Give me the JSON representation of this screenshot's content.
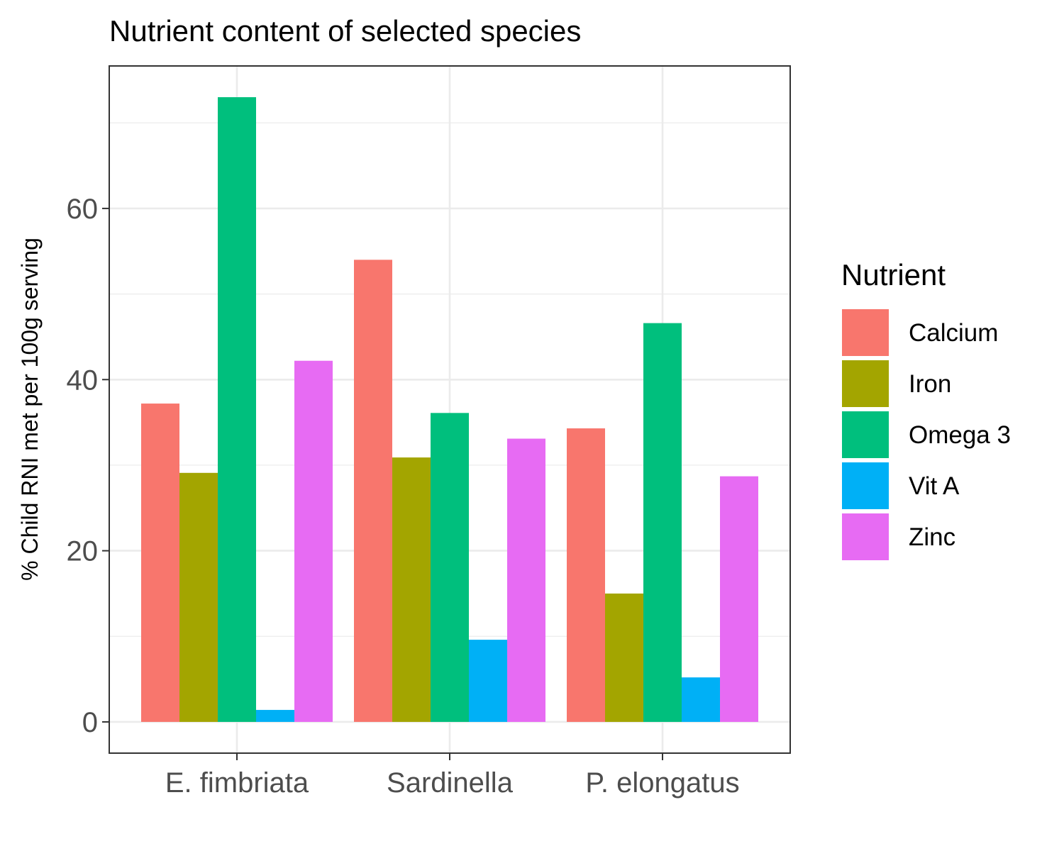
{
  "chart_data": {
    "type": "bar",
    "title": "Nutrient content of selected species",
    "xlabel": "",
    "ylabel": "% Child RNI met per 100g serving",
    "categories": [
      "E. fimbriata",
      "Sardinella",
      "P. elongatus"
    ],
    "series": [
      {
        "name": "Calcium",
        "color": "#F8766D",
        "values": [
          37.2,
          54.0,
          34.3
        ]
      },
      {
        "name": "Iron",
        "color": "#A3A500",
        "values": [
          29.1,
          30.9,
          15.0
        ]
      },
      {
        "name": "Omega 3",
        "color": "#00BF7D",
        "values": [
          73.0,
          36.1,
          46.6
        ]
      },
      {
        "name": "Vit A",
        "color": "#00B0F6",
        "values": [
          1.4,
          9.6,
          5.2
        ]
      },
      {
        "name": "Zinc",
        "color": "#E76BF3",
        "values": [
          42.2,
          33.1,
          28.7
        ]
      }
    ],
    "yticks": [
      0,
      20,
      40,
      60
    ],
    "ylim": [
      -3.65,
      76.65
    ],
    "grid": true,
    "legend": {
      "title": "Nutrient",
      "position": "right"
    }
  }
}
